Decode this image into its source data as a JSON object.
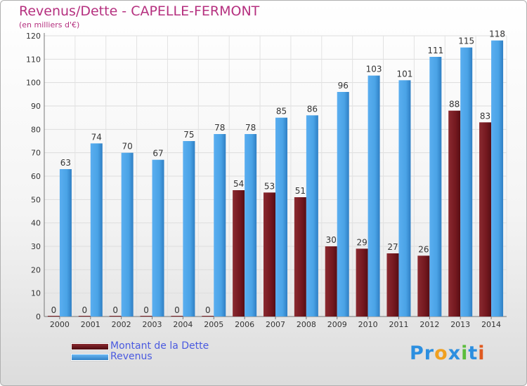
{
  "chart_data": {
    "type": "bar",
    "title": "Revenus/Dette - CAPELLE-FERMONT",
    "subtitle": "(en milliers d'€)",
    "categories": [
      "2000",
      "2001",
      "2002",
      "2003",
      "2004",
      "2005",
      "2006",
      "2007",
      "2008",
      "2009",
      "2010",
      "2011",
      "2012",
      "2013",
      "2014"
    ],
    "series": [
      {
        "name": "Montant de la Dette",
        "color": "#7a1c22",
        "values": [
          0,
          0,
          0,
          0,
          0,
          0,
          54,
          53,
          51,
          30,
          29,
          27,
          26,
          88,
          83
        ]
      },
      {
        "name": "Revenus",
        "color": "#4aa3e6",
        "values": [
          63,
          74,
          70,
          67,
          75,
          78,
          78,
          85,
          86,
          96,
          103,
          101,
          111,
          115,
          118
        ]
      }
    ],
    "ylim": [
      0,
      120
    ],
    "yticks": [
      0,
      10,
      20,
      30,
      40,
      50,
      60,
      70,
      80,
      90,
      100,
      110,
      120
    ],
    "grid": true,
    "legend": "bottom-left"
  },
  "branding": {
    "logo_letters": [
      "P",
      "r",
      "o",
      "x",
      "i",
      "t",
      "i"
    ],
    "logo_colors": [
      "#2c8fe0",
      "#2c8fe0",
      "#f0a020",
      "#2c8fe0",
      "#5cbd3c",
      "#2c8fe0",
      "#e05a20"
    ]
  }
}
